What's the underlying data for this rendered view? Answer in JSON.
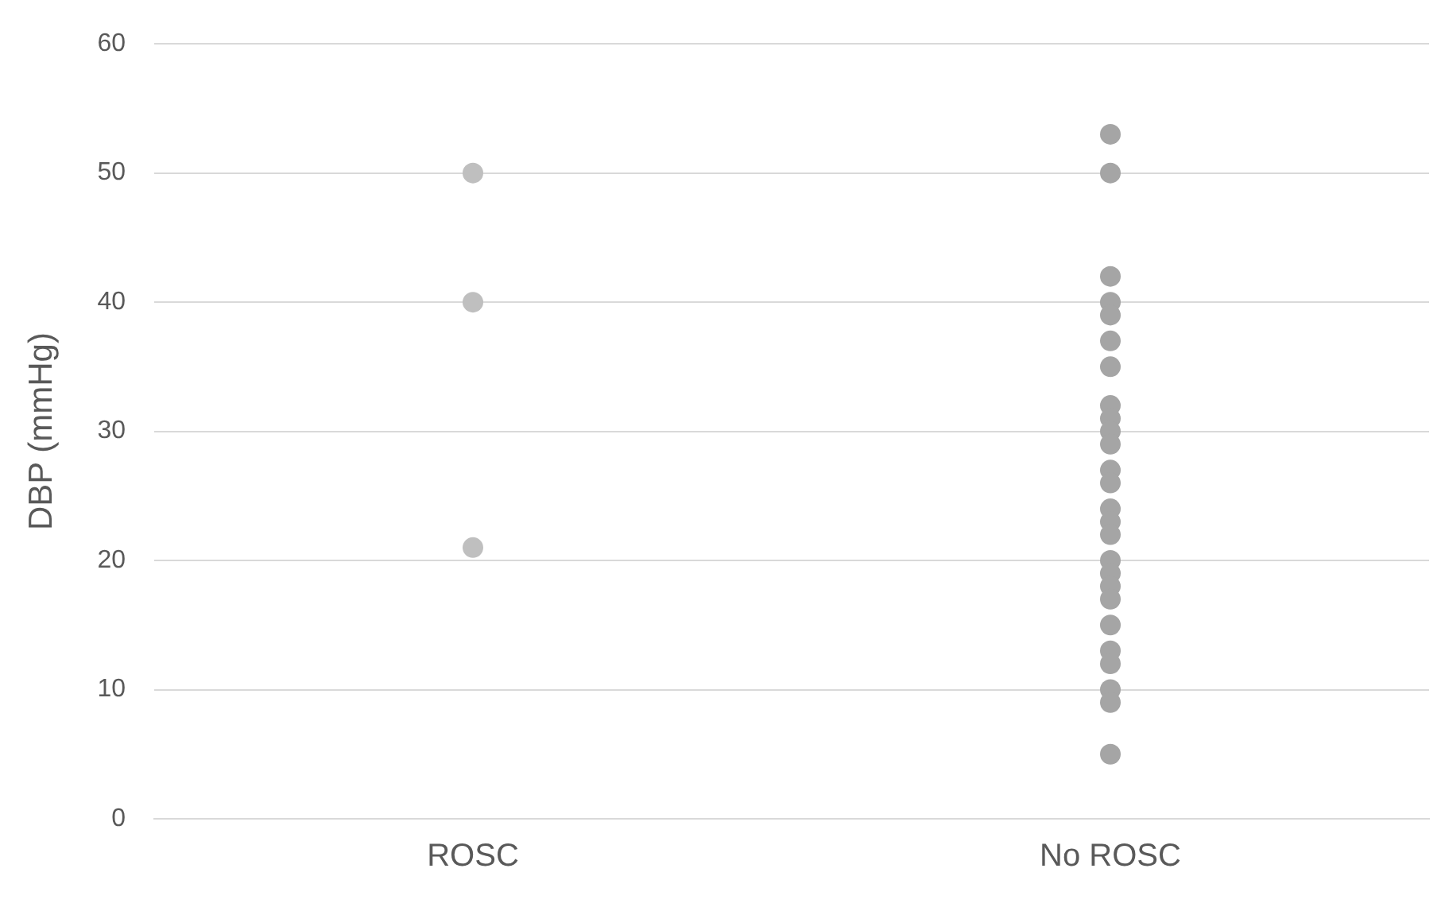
{
  "chart_data": {
    "type": "scatter",
    "ylabel": "DBP (mmHg)",
    "categories": [
      "ROSC",
      "No ROSC"
    ],
    "series": [
      {
        "color": "#bfbfbf",
        "x": [
          "ROSC",
          "ROSC",
          "ROSC"
        ],
        "values": [
          50,
          40,
          21
        ]
      },
      {
        "color": "#a5a5a5",
        "x": [
          "No ROSC",
          "No ROSC",
          "No ROSC",
          "No ROSC",
          "No ROSC",
          "No ROSC",
          "No ROSC",
          "No ROSC",
          "No ROSC",
          "No ROSC",
          "No ROSC",
          "No ROSC",
          "No ROSC",
          "No ROSC",
          "No ROSC",
          "No ROSC",
          "No ROSC",
          "No ROSC",
          "No ROSC",
          "No ROSC",
          "No ROSC",
          "No ROSC",
          "No ROSC",
          "No ROSC",
          "No ROSC",
          "No ROSC"
        ],
        "values": [
          53,
          50,
          42,
          40,
          39,
          37,
          35,
          32,
          31,
          30,
          29,
          27,
          26,
          24,
          23,
          22,
          20,
          19,
          18,
          17,
          15,
          13,
          12,
          10,
          9,
          5
        ]
      }
    ],
    "ylim": [
      0,
      60
    ],
    "yticks": [
      0,
      10,
      20,
      30,
      40,
      50,
      60
    ],
    "grid": "y",
    "legend": false,
    "marker": "circle"
  }
}
